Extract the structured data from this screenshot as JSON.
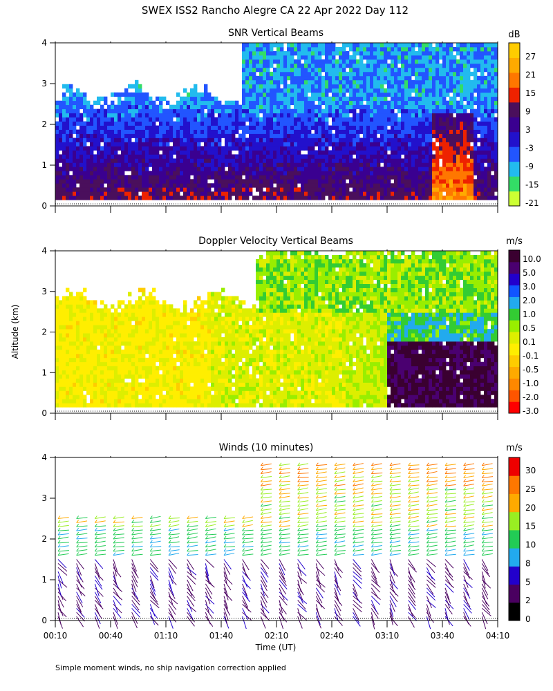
{
  "title": "SWEX ISS2 Rancho Alegre CA  22 Apr 2022 Day 112",
  "ylabel": "Altitude (km)",
  "xlabel": "Time (UT)",
  "footnote": "Simple moment winds, no ship navigation correction applied",
  "chart_data": [
    {
      "type": "heatmap",
      "title": "SNR Vertical Beams",
      "colorbar_unit": "dB",
      "colorbar_ticks": [
        "27",
        "21",
        "15",
        "9",
        "3",
        "-3",
        "-9",
        "-15",
        "-21"
      ],
      "colors": [
        "#ccff33",
        "#33dd66",
        "#22bbee",
        "#2255ff",
        "#2211cc",
        "#3a0090",
        "#4a0f5c",
        "#ee2200",
        "#ff7700",
        "#ffaa00",
        "#ffcc00"
      ],
      "levels": [
        -21,
        -15,
        -9,
        -3,
        3,
        9,
        15,
        21,
        27,
        33
      ],
      "x_range_minutes": [
        10,
        250
      ],
      "ylim": [
        0,
        4
      ],
      "yticks": [
        "0",
        "1",
        "2",
        "3",
        "4"
      ],
      "grid": false
    },
    {
      "type": "heatmap",
      "title": "Doppler Velocity Vertical Beams",
      "colorbar_unit": "m/s",
      "colorbar_ticks": [
        "10.0",
        "5.0",
        "3.0",
        "2.0",
        "1.0",
        "0.5",
        "0.1",
        "-0.1",
        "-0.5",
        "-1.0",
        "-2.0",
        "-3.0"
      ],
      "colors": [
        "#ff0000",
        "#ff5500",
        "#ff8800",
        "#ffaa00",
        "#ffcc00",
        "#ffee00",
        "#ddee00",
        "#99ee00",
        "#33cc33",
        "#22aaee",
        "#1155ff",
        "#2200cc",
        "#4a0070",
        "#3a0030"
      ],
      "x_range_minutes": [
        10,
        250
      ],
      "ylim": [
        0,
        4
      ],
      "yticks": [
        "0",
        "1",
        "2",
        "3",
        "4"
      ],
      "grid": false
    },
    {
      "type": "scatter",
      "title": "Winds (10 minutes)",
      "colorbar_unit": "m/s",
      "colorbar_ticks": [
        "30",
        "25",
        "20",
        "15",
        "10",
        "8",
        "5",
        "2",
        "0"
      ],
      "colors": [
        "#000000",
        "#4a0060",
        "#2200cc",
        "#22aaee",
        "#22cc55",
        "#99ee22",
        "#ffaa00",
        "#ff7700",
        "#ee0000"
      ],
      "speed_levels": [
        0,
        2,
        5,
        8,
        10,
        15,
        20,
        25,
        30,
        35
      ],
      "x": [
        "00:10",
        "00:40",
        "01:10",
        "01:40",
        "02:10",
        "02:40",
        "03:10",
        "03:40",
        "04:10"
      ],
      "x_range_minutes": [
        10,
        250
      ],
      "ylim": [
        0,
        4
      ],
      "yticks": [
        "0",
        "1",
        "2",
        "3",
        "4"
      ],
      "grid": false
    }
  ]
}
